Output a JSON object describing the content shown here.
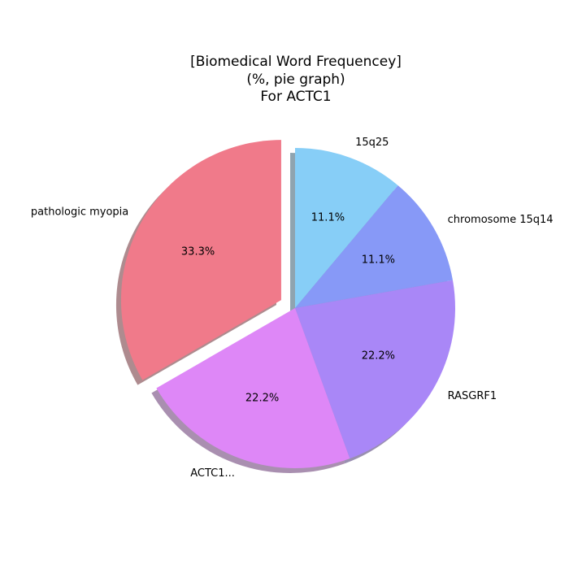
{
  "chart_data": {
    "type": "pie",
    "title_lines": [
      "[Biomedical Word Frequencey]",
      "(%, pie graph)",
      "For ACTC1"
    ],
    "categories": [
      "15q25",
      "chromosome 15q14",
      "RASGRF1",
      "ACTC1...",
      "pathologic myopia"
    ],
    "values": [
      11.1,
      11.1,
      22.2,
      22.2,
      33.3
    ],
    "value_labels": [
      "11.1%",
      "11.1%",
      "22.2%",
      "22.2%",
      "33.3%"
    ],
    "colors": [
      "#87CEF7",
      "#8799F7",
      "#A987F7",
      "#DE87F7",
      "#F07A8A"
    ],
    "exploded": [
      false,
      false,
      false,
      false,
      true
    ],
    "shadow": true,
    "start_angle_deg": 90,
    "direction": "clockwise"
  }
}
